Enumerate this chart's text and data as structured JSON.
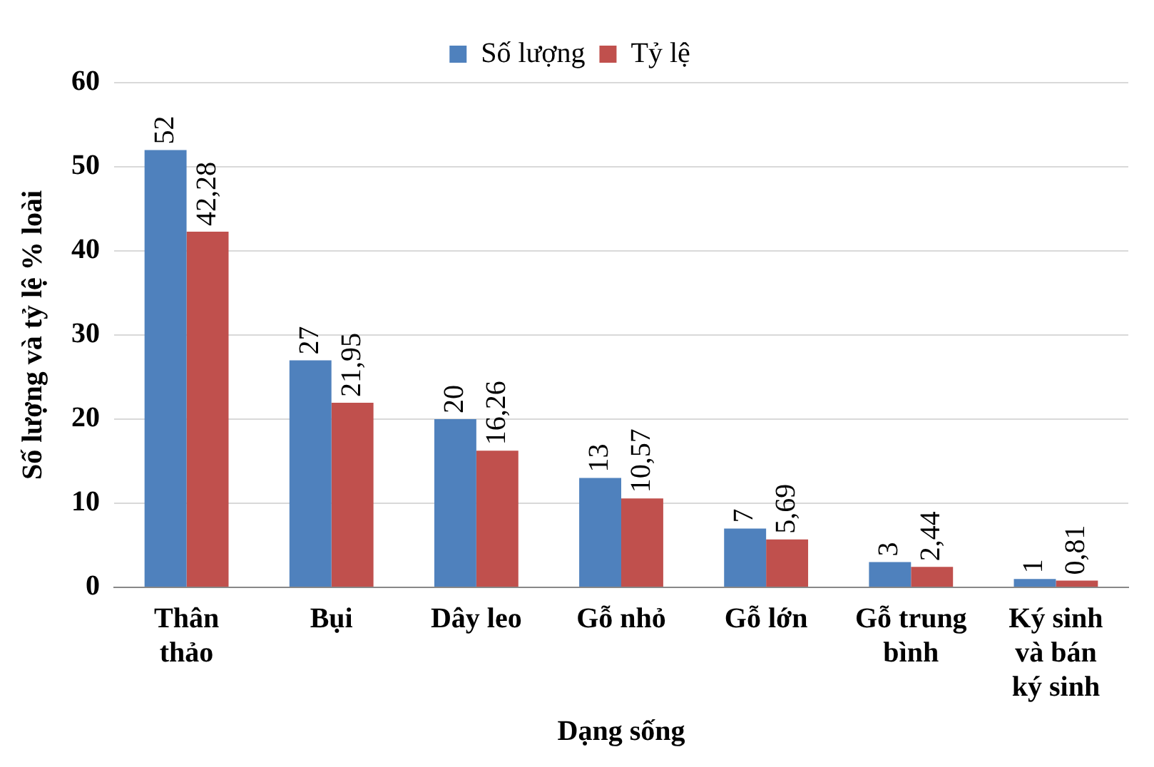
{
  "chart_data": {
    "type": "bar",
    "xlabel": "Dạng sống",
    "ylabel": "Số lượng và tỷ lệ % loài",
    "categories": [
      "Thân thảo",
      "Bụi",
      "Dây leo",
      "Gỗ nhỏ",
      "Gỗ lớn",
      "Gỗ trung bình",
      "Ký sinh và bán ký sinh"
    ],
    "series": [
      {
        "name": "Số lượng",
        "color": "#4f81bd",
        "values": [
          52,
          27,
          20,
          13,
          7,
          3,
          1
        ],
        "value_labels": [
          "52",
          "27",
          "20",
          "13",
          "7",
          "3",
          "1"
        ]
      },
      {
        "name": "Tỷ lệ",
        "color": "#c0504d",
        "values": [
          42.28,
          21.95,
          16.26,
          10.57,
          5.69,
          2.44,
          0.81
        ],
        "value_labels": [
          "42,28",
          "21,95",
          "16,26",
          "10,57",
          "5,69",
          "2,44",
          "0,81"
        ]
      }
    ],
    "ylim": [
      0,
      60
    ],
    "yticks": [
      0,
      10,
      20,
      30,
      40,
      50,
      60
    ],
    "grid": "y",
    "legend": "top"
  }
}
